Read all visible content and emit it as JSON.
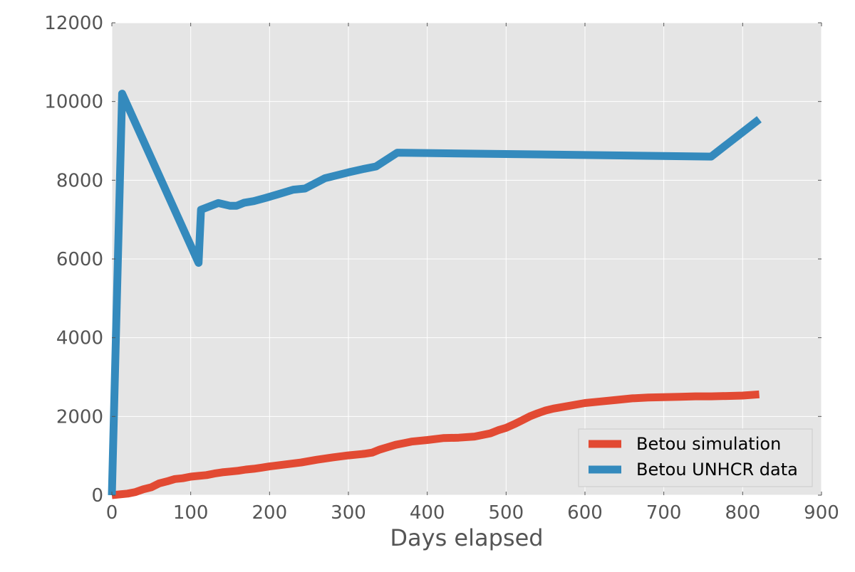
{
  "chart_data": {
    "type": "line",
    "title": "",
    "xlabel": "Days elapsed",
    "ylabel": "",
    "xlim": [
      0,
      900
    ],
    "ylim": [
      0,
      12000
    ],
    "x_ticks": [
      0,
      100,
      200,
      300,
      400,
      500,
      600,
      700,
      800,
      900
    ],
    "y_ticks": [
      0,
      2000,
      4000,
      6000,
      8000,
      10000,
      12000
    ],
    "grid": true,
    "legend_position": "lower-right",
    "series": [
      {
        "name": "Betou simulation",
        "color": "#e24a33",
        "points": [
          [
            0,
            0
          ],
          [
            10,
            20
          ],
          [
            20,
            40
          ],
          [
            30,
            80
          ],
          [
            40,
            150
          ],
          [
            50,
            200
          ],
          [
            60,
            300
          ],
          [
            70,
            350
          ],
          [
            80,
            410
          ],
          [
            90,
            430
          ],
          [
            100,
            470
          ],
          [
            110,
            490
          ],
          [
            120,
            510
          ],
          [
            130,
            550
          ],
          [
            140,
            580
          ],
          [
            150,
            600
          ],
          [
            160,
            620
          ],
          [
            170,
            650
          ],
          [
            180,
            670
          ],
          [
            190,
            700
          ],
          [
            200,
            730
          ],
          [
            220,
            780
          ],
          [
            240,
            830
          ],
          [
            260,
            900
          ],
          [
            280,
            960
          ],
          [
            300,
            1010
          ],
          [
            320,
            1050
          ],
          [
            330,
            1080
          ],
          [
            340,
            1160
          ],
          [
            350,
            1220
          ],
          [
            360,
            1280
          ],
          [
            370,
            1320
          ],
          [
            380,
            1360
          ],
          [
            400,
            1400
          ],
          [
            420,
            1450
          ],
          [
            440,
            1460
          ],
          [
            460,
            1490
          ],
          [
            480,
            1570
          ],
          [
            490,
            1650
          ],
          [
            500,
            1710
          ],
          [
            510,
            1800
          ],
          [
            520,
            1900
          ],
          [
            530,
            2000
          ],
          [
            540,
            2080
          ],
          [
            550,
            2150
          ],
          [
            560,
            2200
          ],
          [
            580,
            2270
          ],
          [
            600,
            2340
          ],
          [
            620,
            2380
          ],
          [
            640,
            2420
          ],
          [
            660,
            2460
          ],
          [
            680,
            2480
          ],
          [
            700,
            2490
          ],
          [
            720,
            2500
          ],
          [
            740,
            2510
          ],
          [
            760,
            2510
          ],
          [
            780,
            2520
          ],
          [
            800,
            2530
          ],
          [
            821,
            2560
          ]
        ]
      },
      {
        "name": "Betou UNHCR data",
        "color": "#348abd",
        "points": [
          [
            0,
            0
          ],
          [
            13,
            10200
          ],
          [
            110,
            5900
          ],
          [
            113,
            7250
          ],
          [
            135,
            7420
          ],
          [
            150,
            7350
          ],
          [
            158,
            7350
          ],
          [
            168,
            7430
          ],
          [
            180,
            7470
          ],
          [
            195,
            7550
          ],
          [
            210,
            7640
          ],
          [
            230,
            7760
          ],
          [
            245,
            7790
          ],
          [
            270,
            8050
          ],
          [
            300,
            8200
          ],
          [
            320,
            8290
          ],
          [
            335,
            8350
          ],
          [
            362,
            8700
          ],
          [
            760,
            8600
          ],
          [
            821,
            9550
          ]
        ]
      }
    ]
  }
}
